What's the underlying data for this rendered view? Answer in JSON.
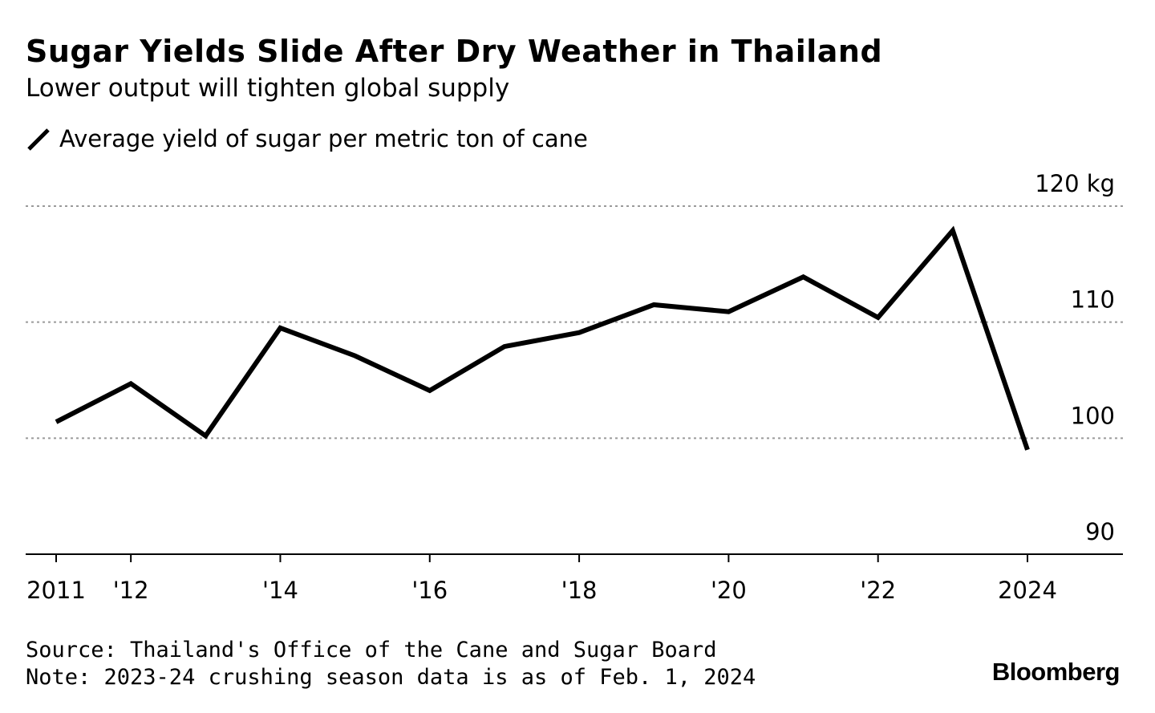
{
  "header": {
    "title": "Sugar Yields Slide After Dry Weather in Thailand",
    "subtitle": "Lower output will tighten global supply"
  },
  "legend": {
    "label": "Average yield of sugar per metric ton of cane"
  },
  "footer": {
    "source": "Source: Thailand's Office of the Cane and Sugar Board",
    "note": "Note: 2023-24 crushing season data is as of Feb. 1, 2024",
    "brand": "Bloomberg"
  },
  "chart_data": {
    "type": "line",
    "title": "Sugar Yields Slide After Dry Weather in Thailand",
    "subtitle": "Lower output will tighten global supply",
    "xlabel": "",
    "ylabel": "",
    "x": [
      2011,
      2012,
      2013,
      2014,
      2015,
      2016,
      2017,
      2018,
      2019,
      2020,
      2021,
      2022,
      2023,
      2024
    ],
    "series": [
      {
        "name": "Average yield of sugar per metric ton of cane",
        "color": "#000000",
        "values": [
          101.4,
          104.7,
          100.2,
          109.5,
          107.1,
          104.1,
          107.9,
          109.1,
          111.5,
          110.9,
          113.9,
          110.4,
          117.9,
          99.0
        ]
      }
    ],
    "ylim": [
      90,
      120
    ],
    "yticks": [
      {
        "value": 90,
        "label": "90"
      },
      {
        "value": 100,
        "label": "100"
      },
      {
        "value": 110,
        "label": "110"
      },
      {
        "value": 120,
        "label": "120 kg"
      }
    ],
    "xticks": [
      {
        "value": 2011,
        "label": "2011"
      },
      {
        "value": 2012,
        "label": "'12"
      },
      {
        "value": 2014,
        "label": "'14"
      },
      {
        "value": 2016,
        "label": "'16"
      },
      {
        "value": 2018,
        "label": "'18"
      },
      {
        "value": 2020,
        "label": "'20"
      },
      {
        "value": 2022,
        "label": "'22"
      },
      {
        "value": 2024,
        "label": "2024"
      }
    ],
    "minor_xticks": [
      2011,
      2012,
      2014,
      2016,
      2018,
      2020,
      2022,
      2024
    ],
    "grid": "horizontal dotted",
    "legend_position": "top-left"
  }
}
